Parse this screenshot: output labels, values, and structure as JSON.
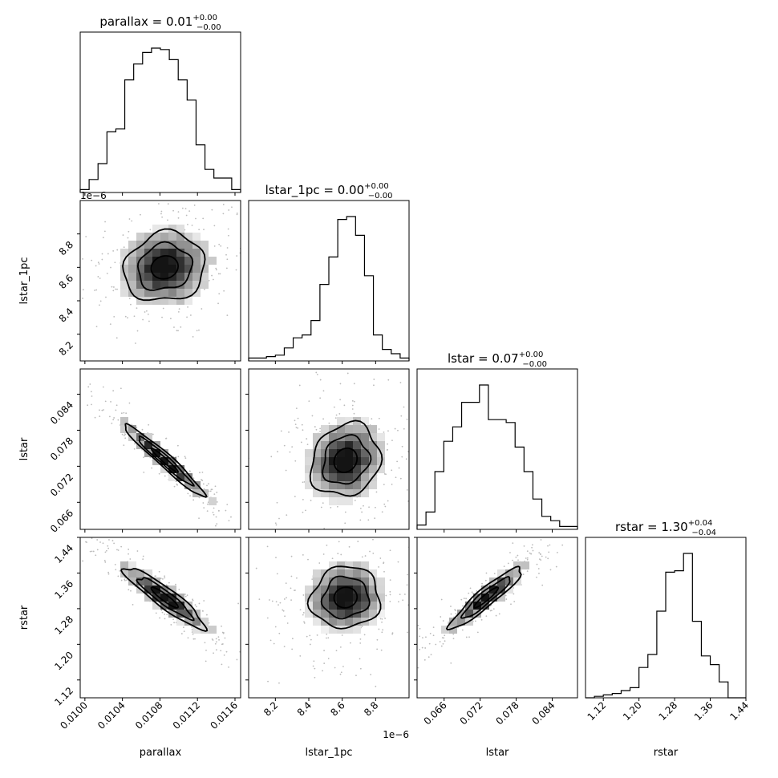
{
  "figure": {
    "offset_label": "1e−6"
  },
  "colors": {
    "axis": "#000000",
    "hist_line": "#000000",
    "scatter": "#bbbbbb",
    "density_dark": "#000000"
  },
  "chart_data": {
    "type": "heatmap",
    "variables": [
      {
        "name": "parallax",
        "title_value": "0.01",
        "title_plus": "+0.00",
        "title_minus": "−0.00",
        "range": [
          0.00995,
          0.01166
        ],
        "ticks": [
          {
            "value": 0.01,
            "label": "0.0100"
          },
          {
            "value": 0.0104,
            "label": "0.0104"
          },
          {
            "value": 0.0108,
            "label": "0.0108"
          },
          {
            "value": 0.0112,
            "label": "0.0112"
          },
          {
            "value": 0.0116,
            "label": "0.0116"
          }
        ],
        "histogram": [
          0.02,
          0.09,
          0.2,
          0.42,
          0.44,
          0.78,
          0.89,
          0.97,
          1.0,
          0.99,
          0.92,
          0.78,
          0.64,
          0.33,
          0.16,
          0.1,
          0.1,
          0.02
        ]
      },
      {
        "name": "lstar_1pc",
        "title_value": "0.00",
        "title_plus": "+0.00",
        "title_minus": "−0.00",
        "range": [
          8.04,
          9.0
        ],
        "offset_label": "1e−6",
        "ticks": [
          {
            "value": 8.2,
            "label": "8.2"
          },
          {
            "value": 8.4,
            "label": "8.4"
          },
          {
            "value": 8.6,
            "label": "8.6"
          },
          {
            "value": 8.8,
            "label": "8.8"
          }
        ],
        "histogram": [
          0.02,
          0.02,
          0.03,
          0.04,
          0.09,
          0.16,
          0.18,
          0.28,
          0.53,
          0.72,
          0.98,
          1.0,
          0.87,
          0.59,
          0.18,
          0.08,
          0.05,
          0.02
        ]
      },
      {
        "name": "lstar",
        "title_value": "0.07",
        "title_plus": "+0.00",
        "title_minus": "−0.00",
        "range": [
          0.0615,
          0.0882
        ],
        "ticks": [
          {
            "value": 0.066,
            "label": "0.066"
          },
          {
            "value": 0.072,
            "label": "0.072"
          },
          {
            "value": 0.078,
            "label": "0.078"
          },
          {
            "value": 0.084,
            "label": "0.084"
          }
        ],
        "histogram": [
          0.03,
          0.12,
          0.4,
          0.61,
          0.71,
          0.88,
          0.88,
          1.0,
          0.76,
          0.76,
          0.74,
          0.57,
          0.4,
          0.21,
          0.09,
          0.06,
          0.02,
          0.02
        ]
      },
      {
        "name": "rstar",
        "title_value": "1.30",
        "title_plus": "+0.04",
        "title_minus": "−0.04",
        "range": [
          1.08,
          1.44
        ],
        "ticks": [
          {
            "value": 1.12,
            "label": "1.12"
          },
          {
            "value": 1.2,
            "label": "1.20"
          },
          {
            "value": 1.28,
            "label": "1.28"
          },
          {
            "value": 1.36,
            "label": "1.36"
          },
          {
            "value": 1.44,
            "label": "1.44"
          }
        ],
        "histogram": [
          0.0,
          0.01,
          0.02,
          0.03,
          0.05,
          0.07,
          0.21,
          0.3,
          0.6,
          0.87,
          0.88,
          1.0,
          0.53,
          0.29,
          0.23,
          0.11,
          0.0,
          0.0
        ]
      }
    ],
    "pairs": [
      {
        "row": 1,
        "col": 0,
        "center": [
          0.01085,
          8.6
        ],
        "sigma": [
          0.00025,
          0.12
        ],
        "rho": 0.1
      },
      {
        "row": 2,
        "col": 0,
        "center": [
          0.01085,
          0.073
        ],
        "sigma": [
          0.00025,
          0.0035
        ],
        "rho": -0.97
      },
      {
        "row": 2,
        "col": 1,
        "center": [
          8.62,
          0.073
        ],
        "sigma": [
          0.12,
          0.0035
        ],
        "rho": 0.15
      },
      {
        "row": 3,
        "col": 0,
        "center": [
          0.01085,
          1.305
        ],
        "sigma": [
          0.00025,
          0.04
        ],
        "rho": -0.92
      },
      {
        "row": 3,
        "col": 1,
        "center": [
          8.62,
          1.305
        ],
        "sigma": [
          0.12,
          0.04
        ],
        "rho": 0.05
      },
      {
        "row": 3,
        "col": 2,
        "center": [
          0.073,
          1.305
        ],
        "sigma": [
          0.0035,
          0.04
        ],
        "rho": 0.93
      }
    ],
    "contour_levels": [
      0.5,
      1.0,
      1.5
    ],
    "grid": false
  }
}
